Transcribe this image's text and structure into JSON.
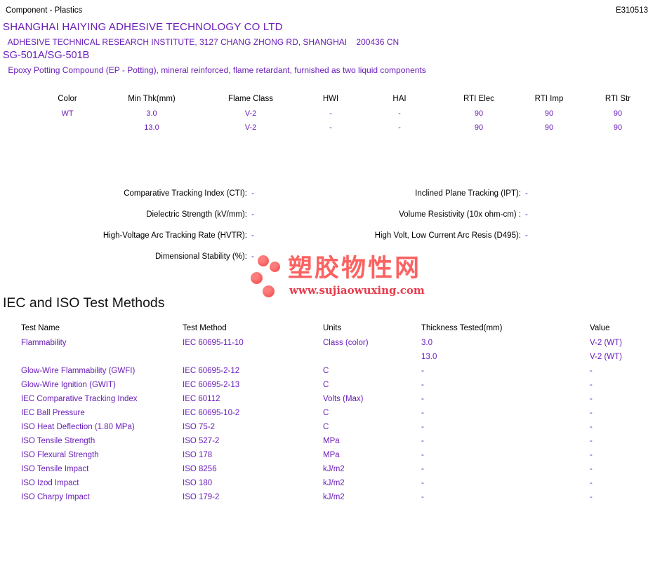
{
  "page": {
    "top_left": "Component - Plastics",
    "file_number": "E310513",
    "company": "SHANGHAI HAIYING ADHESIVE TECHNOLOGY CO LTD",
    "address": " ADHESIVE TECHNICAL RESEARCH INSTITUTE, 3127 CHANG ZHONG RD, SHANGHAI    200436 CN",
    "product": "SG-501A/SG-501B",
    "description": " Epoxy Potting Compound (EP - Potting), mineral reinforced, flame retardant, furnished as two liquid components"
  },
  "ratings_table": {
    "headers": [
      "Color",
      "Min Thk(mm)",
      "Flame Class",
      "HWI",
      "HAI",
      "RTI Elec",
      "RTI Imp",
      "RTI Str"
    ],
    "rows": [
      [
        "WT",
        "3.0",
        "V-2",
        "-",
        "-",
        "90",
        "90",
        "90"
      ],
      [
        "",
        "13.0",
        "V-2",
        "-",
        "-",
        "90",
        "90",
        "90"
      ]
    ]
  },
  "electrical": {
    "rows": [
      {
        "left_label": "Comparative Tracking Index (CTI):",
        "left_value": "-",
        "right_label": "Inclined Plane Tracking (IPT):",
        "right_value": "-"
      },
      {
        "left_label": "Dielectric Strength (kV/mm):",
        "left_value": "-",
        "right_label": "Volume Resistivity (10x ohm-cm) :",
        "right_value": "-"
      },
      {
        "left_label": "High-Voltage Arc Tracking Rate (HVTR):",
        "left_value": "-",
        "right_label": "High Volt, Low Current Arc Resis (D495):",
        "right_value": "-"
      },
      {
        "left_label": "Dimensional Stability (%):",
        "left_value": "-"
      }
    ]
  },
  "logo": {
    "site_name": "塑胶物性网",
    "site_url": "www.sujiaowuxing.com"
  },
  "test_methods": {
    "title": "IEC and ISO Test Methods",
    "headers": [
      "Test Name",
      "Test Method",
      "Units",
      "Thickness Tested(mm)",
      "Value"
    ],
    "rows": [
      [
        "Flammability",
        "IEC 60695-11-10",
        "Class (color)",
        "3.0",
        "V-2 (WT)"
      ],
      [
        "",
        "",
        "",
        "13.0",
        "V-2 (WT)"
      ],
      [
        "Glow-Wire Flammability (GWFI)",
        "IEC 60695-2-12",
        "C",
        "-",
        "-"
      ],
      [
        "Glow-Wire Ignition (GWIT)",
        "IEC 60695-2-13",
        "C",
        "-",
        "-"
      ],
      [
        "IEC Comparative Tracking Index",
        "IEC 60112",
        "Volts (Max)",
        "-",
        "-"
      ],
      [
        "IEC Ball Pressure",
        "IEC 60695-10-2",
        "C",
        "-",
        "-"
      ],
      [
        "ISO Heat Deflection (1.80 MPa)",
        "ISO 75-2",
        "C",
        "-",
        "-"
      ],
      [
        "ISO Tensile Strength",
        "ISO 527-2",
        "MPa",
        "-",
        "-"
      ],
      [
        "ISO Flexural Strength",
        "ISO 178",
        "MPa",
        "-",
        "-"
      ],
      [
        "ISO Tensile Impact",
        "ISO 8256",
        "kJ/m2",
        "-",
        "-"
      ],
      [
        "ISO Izod Impact",
        "ISO 180",
        "kJ/m2",
        "-",
        "-"
      ],
      [
        "ISO Charpy Impact",
        "ISO 179-2",
        "kJ/m2",
        "-",
        "-"
      ]
    ]
  },
  "colors": {
    "data_purple": "#6A1EB9",
    "logo_coral": "#FB6262",
    "logo_url_red": "#E73B4B"
  }
}
